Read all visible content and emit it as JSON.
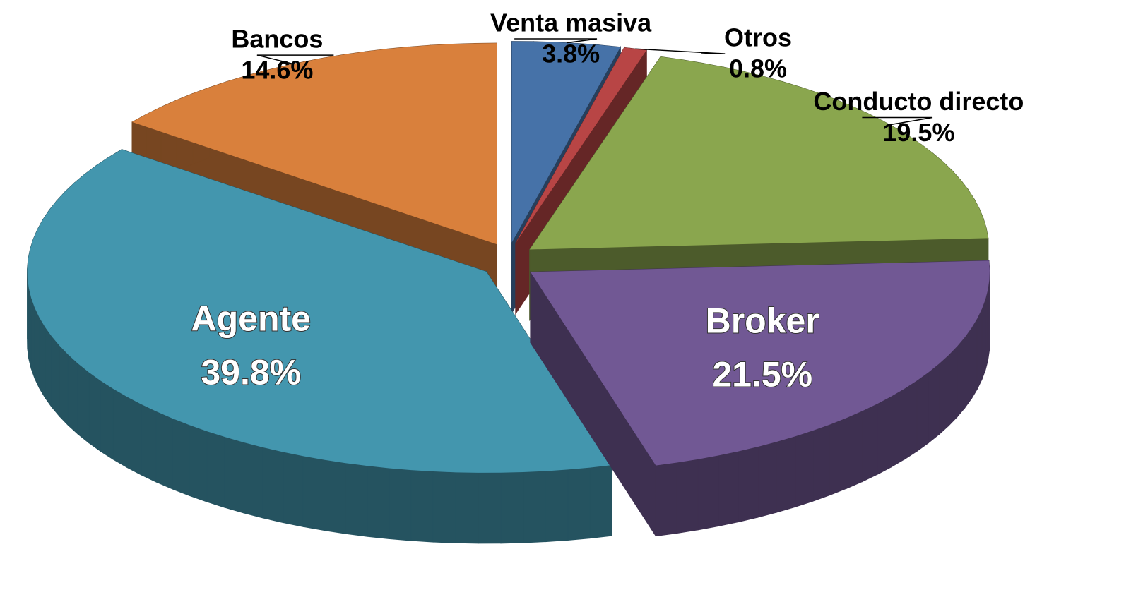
{
  "chart_data": {
    "type": "pie",
    "categories": [
      "Venta masiva",
      "Otros",
      "Conducto directo",
      "Broker",
      "Agente",
      "Bancos"
    ],
    "values": [
      3.8,
      0.8,
      19.5,
      21.5,
      39.8,
      14.6
    ],
    "value_labels": [
      "3.8%",
      "0.8%",
      "19.5%",
      "21.5%",
      "39.8%",
      "14.6%"
    ],
    "colors": [
      "#4672a8",
      "#b84545",
      "#8aa64e",
      "#715894",
      "#4396ae",
      "#d9803c"
    ]
  }
}
